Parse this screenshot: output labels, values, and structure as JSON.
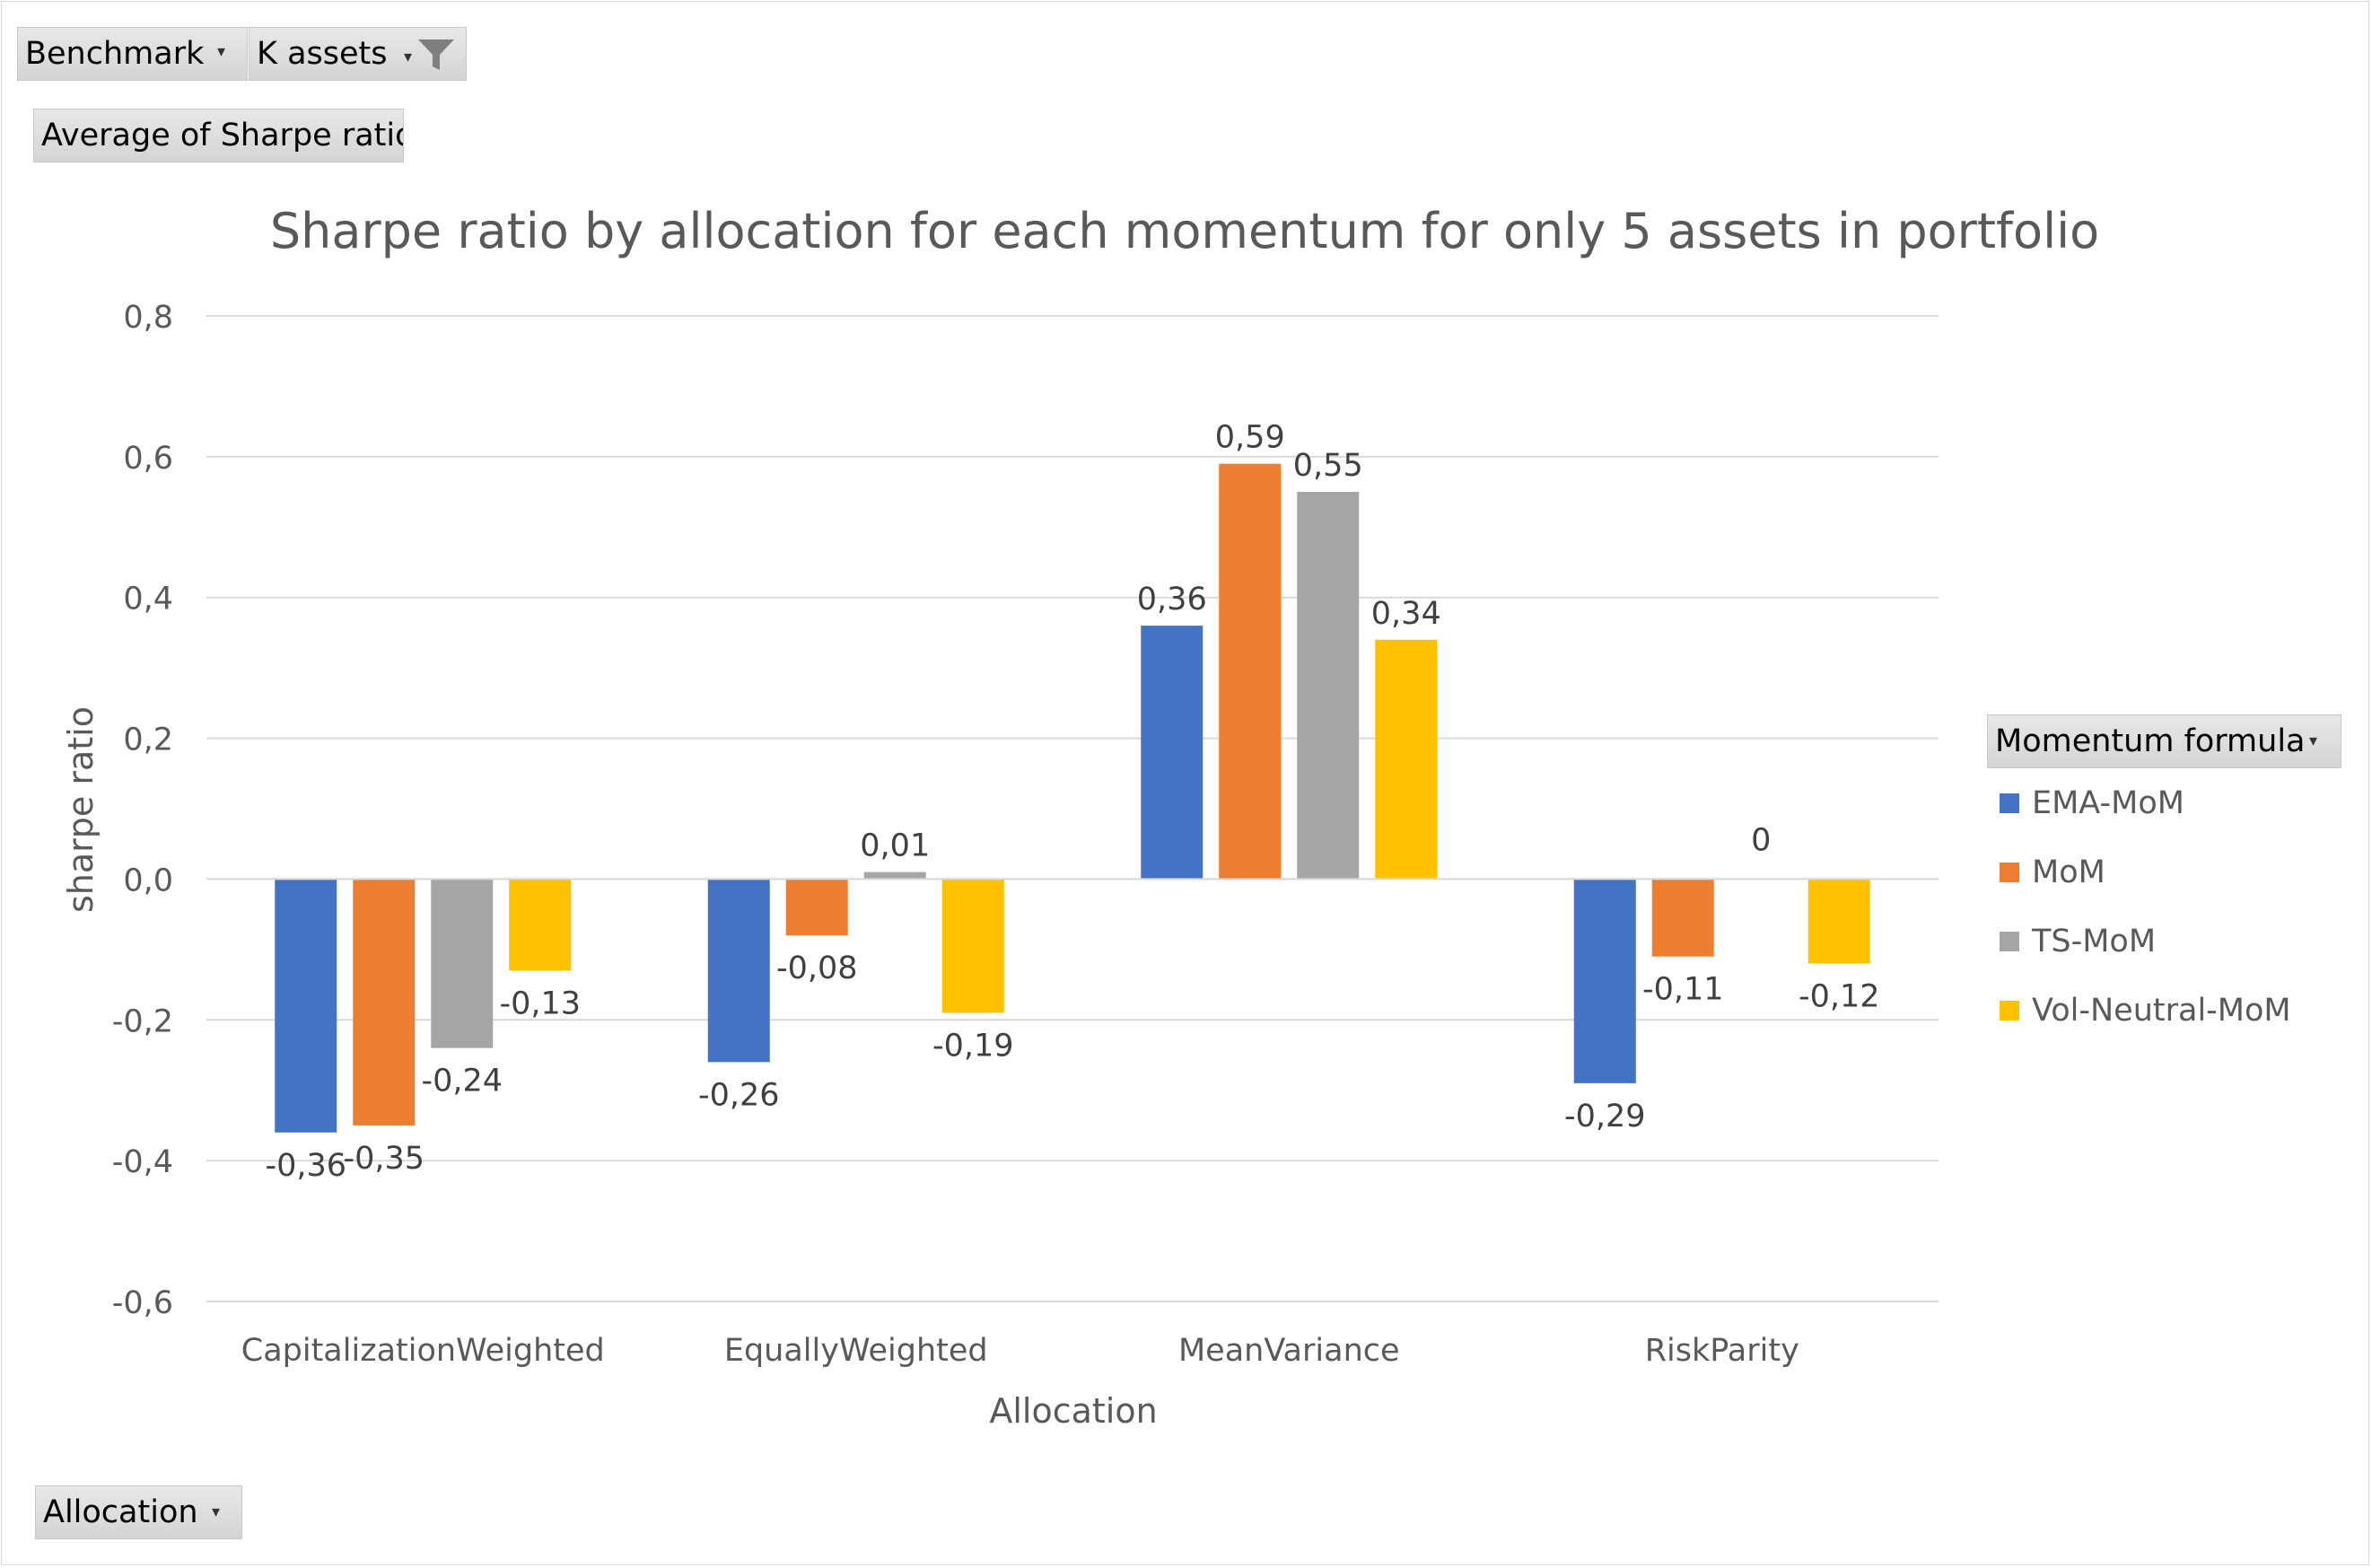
{
  "filters": {
    "benchmark_label": "Benchmark",
    "k_assets_label": "K assets",
    "value_field_label": "Average of Sharpe ratio",
    "axis_field_label": "Allocation",
    "legend_field_label": "Momentum formula"
  },
  "icons": {
    "dropdown": "chevron-down-icon",
    "filter": "funnel-filter-icon"
  },
  "chart_data": {
    "type": "bar",
    "title": "Sharpe ratio by allocation for each momentum for only 5  assets in portfolio",
    "xlabel": "Allocation",
    "ylabel": "sharpe ratio",
    "ylim": [
      -0.6,
      0.8
    ],
    "ytick_values": [
      0.8,
      0.6,
      0.4,
      0.2,
      0.0,
      -0.2,
      -0.4,
      -0.6
    ],
    "ytick_labels": [
      "0,8",
      "0,6",
      "0,4",
      "0,2",
      "0,0",
      "-0,2",
      "-0,4",
      "-0,6"
    ],
    "grid": true,
    "legend_position": "right",
    "categories": [
      "CapitalizationWeighted",
      "EquallyWeighted",
      "MeanVariance",
      "RiskParity"
    ],
    "series": [
      {
        "name": "EMA-MoM",
        "color": "#4472C4",
        "values": [
          -0.36,
          -0.26,
          0.36,
          -0.29
        ],
        "labels": [
          "-0,36",
          "-0,26",
          "0,36",
          "-0,29"
        ]
      },
      {
        "name": "MoM",
        "color": "#ED7D31",
        "values": [
          -0.35,
          -0.08,
          0.59,
          -0.11
        ],
        "labels": [
          "-0,35",
          "-0,08",
          "0,59",
          "-0,11"
        ]
      },
      {
        "name": "TS-MoM",
        "color": "#A5A5A5",
        "values": [
          -0.24,
          0.01,
          0.55,
          0
        ],
        "labels": [
          "-0,24",
          "0,01",
          "0,55",
          "0"
        ]
      },
      {
        "name": "Vol-Neutral-MoM",
        "color": "#FFC000",
        "values": [
          -0.13,
          -0.19,
          0.34,
          -0.12
        ],
        "labels": [
          "-0,13",
          "-0,19",
          "0,34",
          "-0,12"
        ]
      }
    ]
  }
}
